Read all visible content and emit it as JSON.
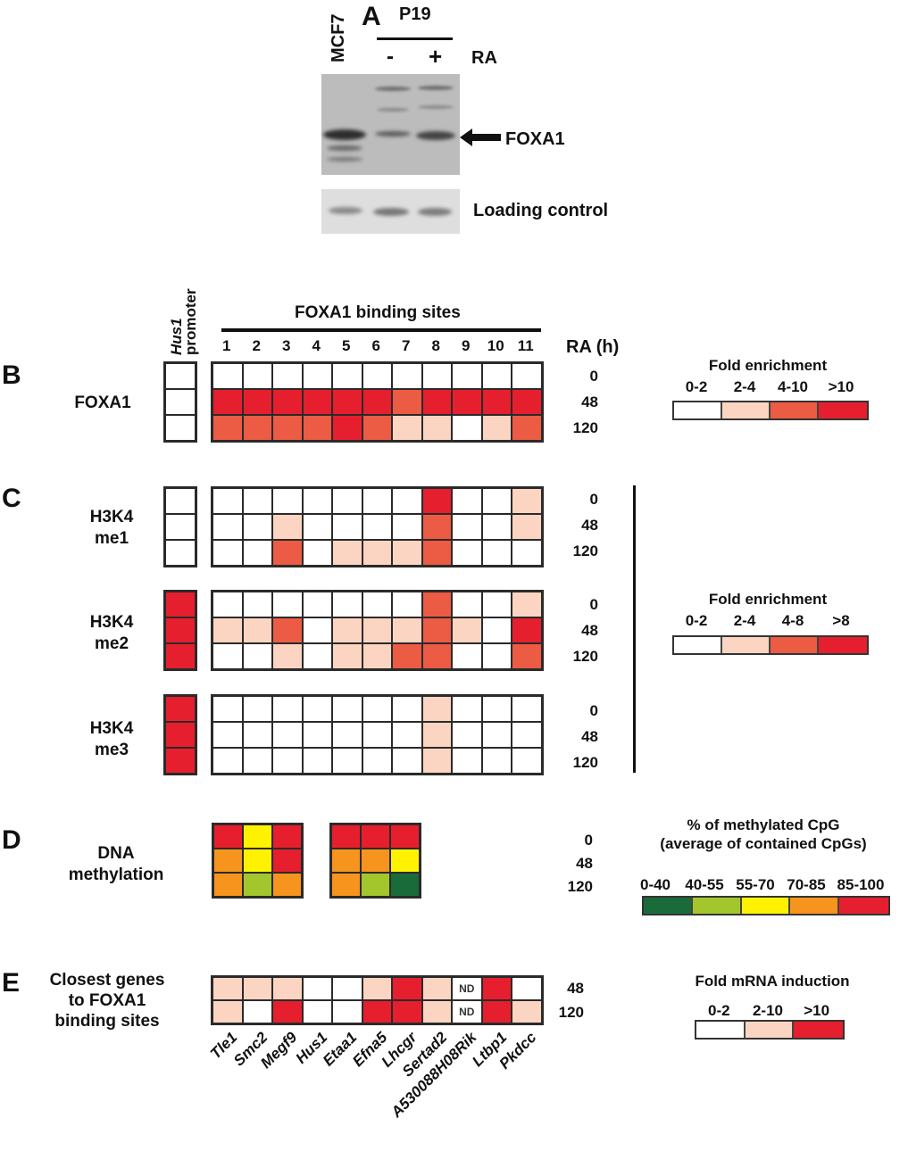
{
  "panel_a": {
    "letter": "A",
    "lane_mcf7": "MCF7",
    "group_label": "P19",
    "lane_minus": "-",
    "lane_plus": "+",
    "treatment": "RA",
    "band_label": "FOXA1",
    "loading_label": "Loading control"
  },
  "header": {
    "promoter_label_italic": "Hus1",
    "promoter_label": "promoter",
    "sites_title": "FOXA1 binding sites",
    "ra_h": "RA (h)"
  },
  "timepoints": [
    "0",
    "48",
    "120"
  ],
  "timepoints_e": [
    "48",
    "120"
  ],
  "chart_data": [
    {
      "type": "heatmap",
      "panel": "B",
      "title": "FOXA1",
      "x": [
        "Hus1 promoter",
        "1",
        "2",
        "3",
        "4",
        "5",
        "6",
        "7",
        "8",
        "9",
        "10",
        "11"
      ],
      "y": [
        "0",
        "48",
        "120"
      ],
      "ylabel": "RA (h)",
      "legend": {
        "title": "Fold enrichment",
        "bins": [
          "0-2",
          "2-4",
          "4-10",
          ">10"
        ],
        "colors": [
          "#ffffff",
          "#fcd5c2",
          "#ec5b44",
          "#e61f2e"
        ]
      },
      "levels": [
        [
          0,
          0,
          0,
          0,
          0,
          0,
          0,
          0,
          0,
          0,
          0,
          0
        ],
        [
          0,
          3,
          3,
          3,
          3,
          3,
          3,
          2,
          3,
          3,
          3,
          3
        ],
        [
          0,
          2,
          2,
          2,
          2,
          3,
          2,
          1,
          1,
          0,
          1,
          2
        ]
      ]
    },
    {
      "type": "heatmap",
      "panel": "C",
      "title": "H3K4 me1",
      "x": [
        "Hus1 promoter",
        "1",
        "2",
        "3",
        "4",
        "5",
        "6",
        "7",
        "8",
        "9",
        "10",
        "11"
      ],
      "y": [
        "0",
        "48",
        "120"
      ],
      "legend": {
        "title": "Fold enrichment",
        "bins": [
          "0-2",
          "2-4",
          "4-8",
          ">8"
        ]
      },
      "levels": [
        [
          0,
          0,
          0,
          0,
          0,
          0,
          0,
          0,
          3,
          0,
          0,
          1
        ],
        [
          0,
          0,
          0,
          1,
          0,
          0,
          0,
          0,
          2,
          0,
          0,
          1
        ],
        [
          0,
          0,
          0,
          2,
          0,
          1,
          1,
          1,
          2,
          0,
          0,
          0
        ]
      ]
    },
    {
      "type": "heatmap",
      "panel": "C",
      "title": "H3K4 me2",
      "x": [
        "Hus1 promoter",
        "1",
        "2",
        "3",
        "4",
        "5",
        "6",
        "7",
        "8",
        "9",
        "10",
        "11"
      ],
      "y": [
        "0",
        "48",
        "120"
      ],
      "levels": [
        [
          3,
          0,
          0,
          0,
          0,
          0,
          0,
          0,
          2,
          0,
          0,
          1
        ],
        [
          3,
          1,
          1,
          2,
          0,
          1,
          1,
          1,
          2,
          1,
          0,
          3
        ],
        [
          3,
          0,
          0,
          1,
          0,
          1,
          1,
          2,
          2,
          0,
          0,
          2
        ]
      ]
    },
    {
      "type": "heatmap",
      "panel": "C",
      "title": "H3K4 me3",
      "x": [
        "Hus1 promoter",
        "1",
        "2",
        "3",
        "4",
        "5",
        "6",
        "7",
        "8",
        "9",
        "10",
        "11"
      ],
      "y": [
        "0",
        "48",
        "120"
      ],
      "levels": [
        [
          3,
          0,
          0,
          0,
          0,
          0,
          0,
          0,
          1,
          0,
          0,
          0
        ],
        [
          3,
          0,
          0,
          0,
          0,
          0,
          0,
          0,
          1,
          0,
          0,
          0
        ],
        [
          3,
          0,
          0,
          0,
          0,
          0,
          0,
          0,
          1,
          0,
          0,
          0
        ]
      ]
    },
    {
      "type": "heatmap",
      "panel": "D",
      "title": "DNA methylation",
      "y": [
        "0",
        "48",
        "120"
      ],
      "legend": {
        "title": "% of methylated CpG (average of contained CpGs)",
        "bins": [
          "0-40",
          "40-55",
          "55-70",
          "70-85",
          "85-100"
        ],
        "colors": [
          "#1a6b3a",
          "#a3c62c",
          "#fff200",
          "#f7941e",
          "#e61f2e"
        ]
      },
      "block1": [
        [
          4,
          2,
          4
        ],
        [
          3,
          2,
          4
        ],
        [
          3,
          1,
          3
        ]
      ],
      "block2": [
        [
          4,
          4,
          4
        ],
        [
          3,
          3,
          2
        ],
        [
          3,
          1,
          0
        ]
      ]
    },
    {
      "type": "heatmap",
      "panel": "E",
      "title": "Closest genes to FOXA1 binding sites",
      "x": [
        "Tle1",
        "Smc2",
        "Megf9",
        "Hus1",
        "Etaa1",
        "Efna5",
        "Lhcgr",
        "Sertad2",
        "A530088H08Rik",
        "Ltbp1",
        "Pkdcc"
      ],
      "y": [
        "48",
        "120"
      ],
      "legend": {
        "title": "Fold mRNA induction",
        "bins": [
          "0-2",
          "2-10",
          ">10"
        ],
        "colors": [
          "#ffffff",
          "#fcd5c2",
          "#e61f2e"
        ]
      },
      "levels": [
        [
          1,
          1,
          1,
          0,
          0,
          1,
          3,
          1,
          "ND",
          3,
          0
        ],
        [
          1,
          0,
          3,
          0,
          0,
          3,
          3,
          1,
          "ND",
          3,
          1
        ]
      ]
    }
  ],
  "panel_b": {
    "letter": "B",
    "row_label": "FOXA1"
  },
  "panel_c": {
    "letter": "C",
    "me1_a": "H3K4",
    "me1_b": "me1",
    "me2_a": "H3K4",
    "me2_b": "me2",
    "me3_a": "H3K4",
    "me3_b": "me3"
  },
  "panel_d": {
    "letter": "D",
    "label_a": "DNA",
    "label_b": "methylation"
  },
  "panel_e": {
    "letter": "E",
    "label_a": "Closest genes",
    "label_b": "to FOXA1",
    "label_c": "binding sites",
    "nd": "ND"
  },
  "legend_b": {
    "title": "Fold enrichment",
    "bins": [
      "0-2",
      "2-4",
      "4-10",
      ">10"
    ]
  },
  "legend_c": {
    "title": "Fold enrichment",
    "bins": [
      "0-2",
      "2-4",
      "4-8",
      ">8"
    ]
  },
  "legend_d": {
    "title1": "% of methylated CpG",
    "title2": "(average of contained CpGs)",
    "bins": [
      "0-40",
      "40-55",
      "55-70",
      "70-85",
      "85-100"
    ]
  },
  "legend_e": {
    "title": "Fold mRNA induction",
    "bins": [
      "0-2",
      "2-10",
      ">10"
    ]
  },
  "site_numbers": [
    "1",
    "2",
    "3",
    "4",
    "5",
    "6",
    "7",
    "8",
    "9",
    "10",
    "11"
  ]
}
